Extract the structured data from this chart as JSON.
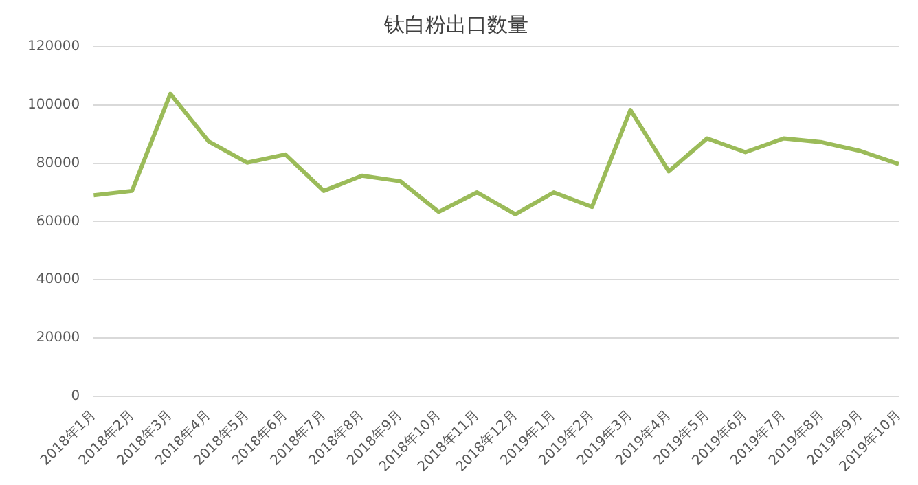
{
  "chart_data": {
    "type": "line",
    "title": "钛白粉出口数量",
    "categories": [
      "2018年1月",
      "2018年2月",
      "2018年3月",
      "2018年4月",
      "2018年5月",
      "2018年6月",
      "2018年7月",
      "2018年8月",
      "2018年9月",
      "2018年10月",
      "2018年11月",
      "2018年12月",
      "2019年1月",
      "2019年2月",
      "2019年3月",
      "2019年4月",
      "2019年5月",
      "2019年6月",
      "2019年7月",
      "2019年8月",
      "2019年9月",
      "2019年10月"
    ],
    "series": [
      {
        "color": "#9bbb59",
        "values": [
          69000,
          70500,
          103800,
          87500,
          80200,
          83000,
          70500,
          75700,
          73800,
          63300,
          70000,
          62500,
          70000,
          65000,
          98300,
          77200,
          88500,
          83800,
          88500,
          87200,
          84200,
          79700
        ]
      }
    ],
    "ylim": [
      0,
      120000
    ],
    "yticks": [
      0,
      20000,
      40000,
      60000,
      80000,
      100000,
      120000
    ],
    "grid": "y",
    "legend": false,
    "marker": "none",
    "line_style": "solid"
  }
}
